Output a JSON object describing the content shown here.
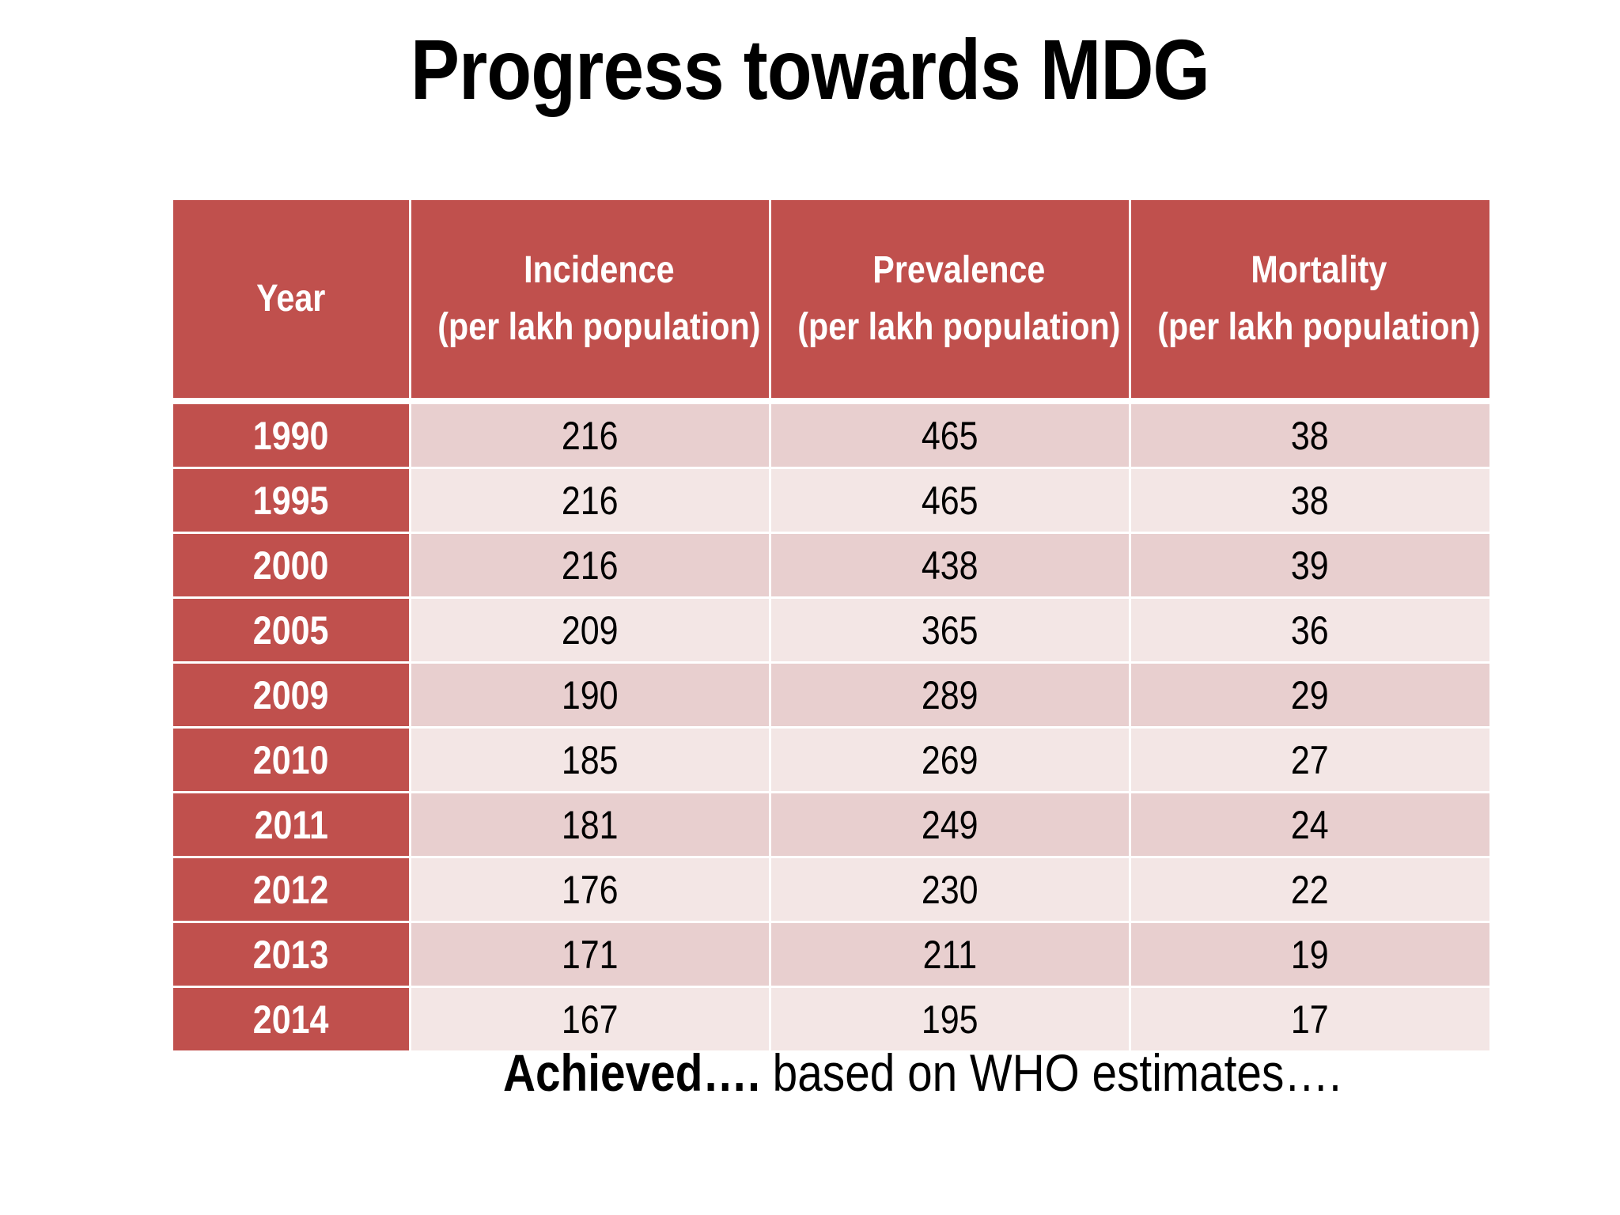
{
  "title": "Progress towards MDG",
  "table": {
    "headers": [
      {
        "line1": "Year",
        "line2": ""
      },
      {
        "line1": "Incidence",
        "line2": "(per lakh population)"
      },
      {
        "line1": "Prevalence",
        "line2": "(per lakh population)"
      },
      {
        "line1": "Mortality",
        "line2": "(per lakh population)"
      }
    ],
    "rows": [
      {
        "year": "1990",
        "incidence": "216",
        "prevalence": "465",
        "mortality": "38"
      },
      {
        "year": "1995",
        "incidence": "216",
        "prevalence": "465",
        "mortality": "38"
      },
      {
        "year": "2000",
        "incidence": "216",
        "prevalence": "438",
        "mortality": "39"
      },
      {
        "year": "2005",
        "incidence": "209",
        "prevalence": "365",
        "mortality": "36"
      },
      {
        "year": "2009",
        "incidence": "190",
        "prevalence": "289",
        "mortality": "29"
      },
      {
        "year": "2010",
        "incidence": "185",
        "prevalence": "269",
        "mortality": "27"
      },
      {
        "year": "2011",
        "incidence": "181",
        "prevalence": "249",
        "mortality": "24"
      },
      {
        "year": "2012",
        "incidence": "176",
        "prevalence": "230",
        "mortality": "22"
      },
      {
        "year": "2013",
        "incidence": "171",
        "prevalence": "211",
        "mortality": "19"
      },
      {
        "year": "2014",
        "incidence": "167",
        "prevalence": "195",
        "mortality": "17"
      }
    ]
  },
  "footnote": {
    "emphasis": "Achieved….",
    "rest": " based on WHO estimates…."
  },
  "colors": {
    "header_bg": "#c0504d",
    "row_odd_bg": "#e8cfcf",
    "row_even_bg": "#f3e6e5"
  }
}
